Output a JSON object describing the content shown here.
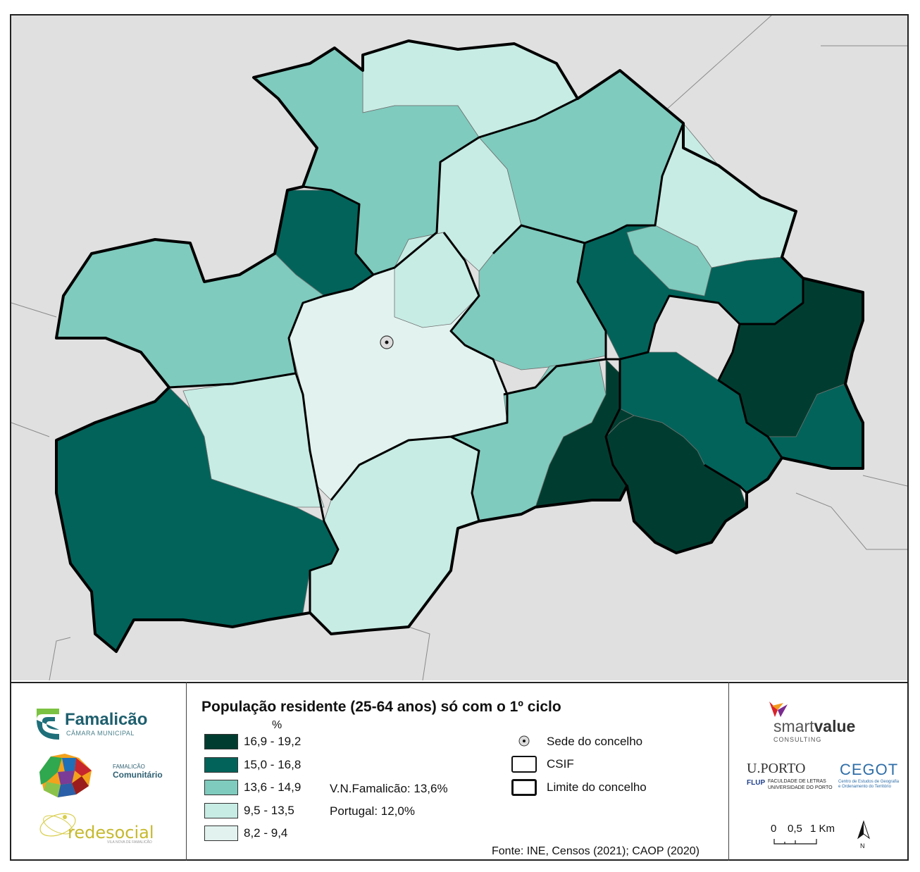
{
  "map": {
    "title": "População residente (25-64 anos) só com o 1º ciclo",
    "unit": "%",
    "legend": {
      "classes": [
        {
          "label": "16,9 - 19,2",
          "color": "#003d30"
        },
        {
          "label": "15,0 - 16,8",
          "color": "#02635a"
        },
        {
          "label": "13,6 - 14,9",
          "color": "#7fcbbe"
        },
        {
          "label": "9,5 - 13,5",
          "color": "#c7ece4"
        },
        {
          "label": "8,2 - 9,4",
          "color": "#e2f3ef"
        }
      ],
      "stats": {
        "municipality": "V.N.Famalicão: 13,6%",
        "country": "Portugal: 12,0%"
      },
      "symbols": {
        "seat": "Sede do concelho",
        "csif": "CSIF",
        "limit": "Limite do concelho"
      }
    },
    "source": "Fonte: INE, Censos (2021); CAOP (2020)",
    "scale": {
      "labels": [
        "0",
        "0,5",
        "1 Km"
      ]
    },
    "north": "N",
    "background_color": "#e0e0e0"
  },
  "logos": {
    "famalicao": {
      "name": "Famalicão",
      "sub": "CÂMARA MUNICIPAL"
    },
    "comunitario": {
      "line1": "FAMALICÃO",
      "line2": "Comunitário"
    },
    "redesocial": {
      "name": "redesocial",
      "sub": "VILA NOVA DE FAMALICÃO"
    },
    "smartvalue": {
      "name_a": "smart",
      "name_b": "value",
      "sub": "CONSULTING"
    },
    "uporto": {
      "name": "U.PORTO",
      "flup": "FLUP",
      "line1": "FACULDADE DE LETRAS",
      "line2": "UNIVERSIDADE DO PORTO"
    },
    "cegot": {
      "name": "CEGOT",
      "line1": "Centro de Estudos de Geografia",
      "line2": "e Ordenamento do Território"
    }
  }
}
